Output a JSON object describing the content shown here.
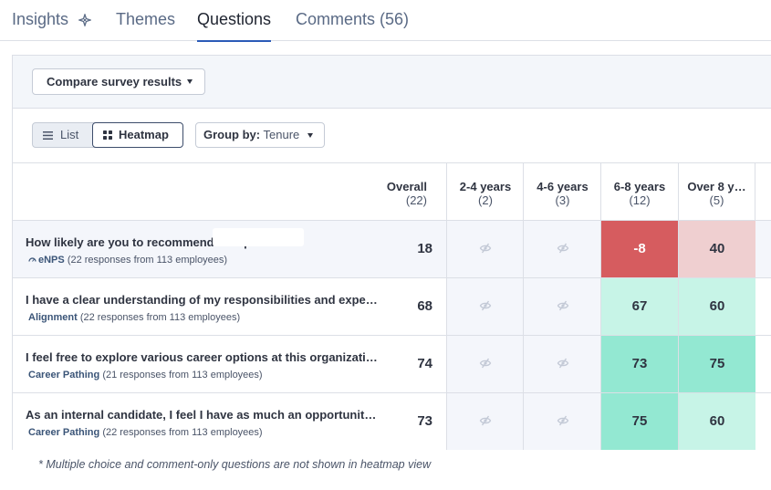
{
  "tabs": [
    {
      "label": "Insights"
    },
    {
      "label": "Themes"
    },
    {
      "label": "Questions"
    },
    {
      "label": "Comments (56)"
    }
  ],
  "compare_button": {
    "label": "Compare survey results"
  },
  "view_toggle": {
    "list_label": "List",
    "heatmap_label": "Heatmap",
    "selected": "Heatmap"
  },
  "group_by": {
    "label": "Group by:",
    "value": "Tenure"
  },
  "columns": [
    {
      "label": "Overall",
      "count": "(22)"
    },
    {
      "label": "2-4 years",
      "count": "(2)"
    },
    {
      "label": "4-6 years",
      "count": "(3)"
    },
    {
      "label": "6-8 years",
      "count": "(12)"
    },
    {
      "label": "Over 8 y…",
      "count": "(5)"
    }
  ],
  "rows": [
    {
      "question": "How likely are you to recommend                          as a place …",
      "category": "eNPS",
      "responses": "(22 responses from 113 employees)",
      "overall": "18",
      "cells": [
        "",
        "",
        "-8",
        "40"
      ]
    },
    {
      "question": "I have a clear understanding of my responsibilities and expect…",
      "category": "Alignment",
      "responses": "(22 responses from 113 employees)",
      "overall": "68",
      "cells": [
        "",
        "",
        "67",
        "60"
      ]
    },
    {
      "question": "I feel free to explore various career options at this organization.",
      "category": "Career Pathing",
      "responses": "(21 responses from 113 employees)",
      "overall": "74",
      "cells": [
        "",
        "",
        "73",
        "75"
      ]
    },
    {
      "question": "As an internal candidate, I feel I have as much an opportunity …",
      "category": "Career Pathing",
      "responses": "(22 responses from 113 employees)",
      "overall": "73",
      "cells": [
        "",
        "",
        "75",
        "60"
      ]
    }
  ],
  "cell_colors": {
    "strong_negative": "#d65c5f",
    "light_negative": "#efcfd0",
    "strong_positive": "#93e8d2",
    "light_positive": "#c7f4e7",
    "no_data": "#f4f6fb"
  },
  "icons": {
    "insights": "sparkle-icon",
    "hidden": "eye-off-icon",
    "enps": "gauge-icon"
  },
  "footnote": "* Multiple choice and comment-only questions are not shown in heatmap view"
}
